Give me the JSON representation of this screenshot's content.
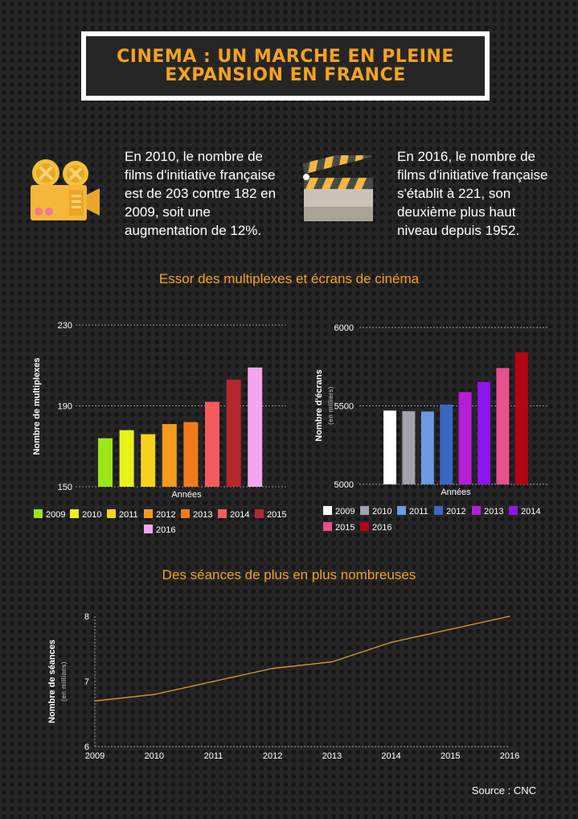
{
  "title": {
    "line1": "CINEMA : UN MARCHE EN PLEINE",
    "line2": "EXPANSION EN FRANCE"
  },
  "facts": [
    {
      "icon": "film-projector-icon",
      "lines": [
        "En 2010, le nombre de",
        "films d'initiative française",
        "est de 203 contre 182 en",
        "2009, soit une",
        "augmentation de 12%."
      ]
    },
    {
      "icon": "clapperboard-icon",
      "lines": [
        "En 2016, le nombre de",
        "films d'initiative française",
        "s'établit à 221, son",
        "deuxième plus haut",
        "niveau depuis 1952."
      ]
    }
  ],
  "section1_title": "Essor des multiplexes et écrans de cinéma",
  "section2_title": "Des séances de plus en plus nombreuses",
  "source": "Source : CNC",
  "colors": {
    "accent": "#f5a21e",
    "background": "#262626"
  },
  "chart_data": [
    {
      "type": "bar",
      "categories": [
        "2009",
        "2010",
        "2011",
        "2012",
        "2013",
        "2014",
        "2015",
        "2016"
      ],
      "values": [
        174,
        178,
        176,
        181,
        182,
        192,
        203,
        209
      ],
      "colors": [
        "#9de51b",
        "#e8f21a",
        "#f7d21d",
        "#f59a1d",
        "#f37a1b",
        "#f75a5e",
        "#b3282e",
        "#f3a6ee"
      ],
      "xlabel": "Années",
      "ylabel": "Nombre de multiplexes",
      "ylim": [
        150,
        230
      ],
      "yticks": [
        150,
        190,
        230
      ],
      "grid": true,
      "legend": "bottom"
    },
    {
      "type": "bar",
      "categories": [
        "2009",
        "2010",
        "2011",
        "2012",
        "2013",
        "2014",
        "2015",
        "2016"
      ],
      "values": [
        5470,
        5466,
        5464,
        5508,
        5588,
        5653,
        5741,
        5842
      ],
      "colors": [
        "#ffffff",
        "#a4a1ad",
        "#6b9be3",
        "#3a67c2",
        "#b61fd8",
        "#8e15ec",
        "#e8508e",
        "#b30512"
      ],
      "xlabel": "Années",
      "ylabel": "Nombre d'écrans",
      "ylabel_sub": "(en milliers)",
      "ylim": [
        5000,
        6000
      ],
      "yticks": [
        5000,
        5500,
        6000
      ],
      "grid": true,
      "legend": "bottom"
    },
    {
      "type": "line",
      "x": [
        "2009",
        "2010",
        "2011",
        "2012",
        "2013",
        "2014",
        "2015",
        "2016"
      ],
      "values": [
        6.7,
        6.8,
        7.0,
        7.2,
        7.3,
        7.6,
        7.8,
        8.0
      ],
      "color": "#d89a2c",
      "ylabel": "Nombre de séances",
      "ylabel_sub": "(en millions)",
      "ylim": [
        6,
        8
      ],
      "yticks": [
        6,
        7,
        8
      ],
      "grid": true
    }
  ]
}
